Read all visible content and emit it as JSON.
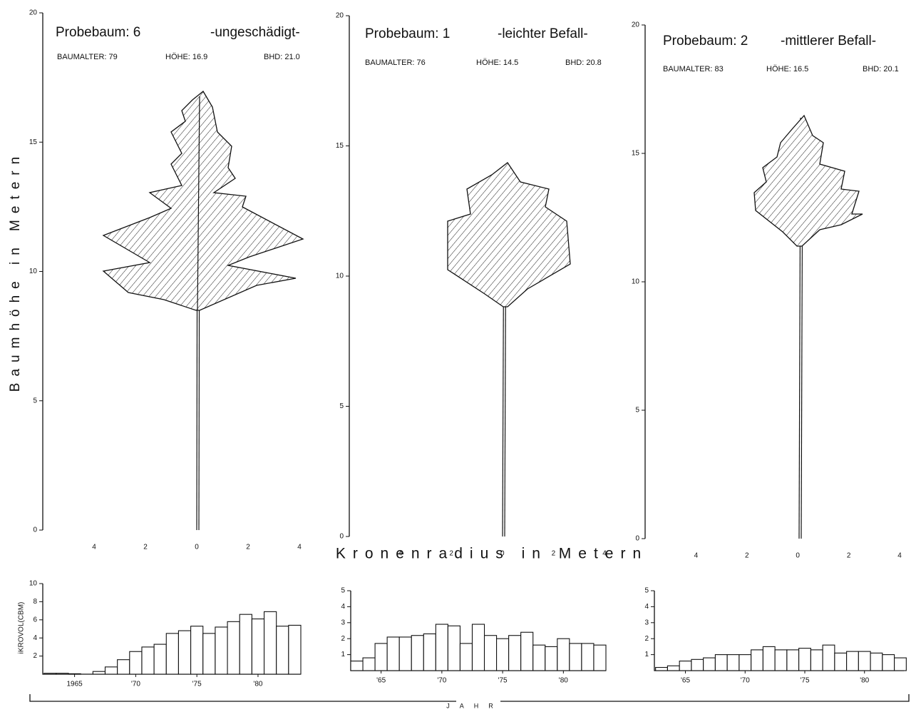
{
  "labels": {
    "y_label": "Baumhöhe in Metern",
    "x_label": "Kronenradius in Metern",
    "bar_y_label": "iKROVOL(CBM)",
    "bar_x_label": "JAHR"
  },
  "chart_data": [
    {
      "type": "profile",
      "title": "Probebaum: 6",
      "subtitle": "-ungeschädigt-",
      "age": "BAUMALTER: 79",
      "height": "HÖHE: 16.9",
      "dbh": "BHD: 21.0",
      "xlim": [
        -6,
        4
      ],
      "xticks": [
        {
          "value": -4,
          "label": "4"
        },
        {
          "value": -2,
          "label": "2"
        },
        0,
        2,
        4
      ],
      "ylim": [
        0,
        20
      ],
      "yticks": [
        0,
        5,
        10,
        15,
        20
      ]
    },
    {
      "type": "profile",
      "title": "Probebaum: 1",
      "subtitle": "-leichter Befall-",
      "age": "BAUMALTER: 76",
      "height": "HÖHE: 14.5",
      "dbh": "BHD: 20.8",
      "xlim": [
        -6,
        4
      ],
      "xticks": [
        {
          "value": -4,
          "label": "4"
        },
        {
          "value": -2,
          "label": "2"
        },
        0,
        2,
        4
      ],
      "ylim": [
        0,
        20
      ],
      "yticks": [
        0,
        5,
        10,
        15,
        20
      ]
    },
    {
      "type": "profile",
      "title": "Probebaum: 2",
      "subtitle": "-mittlerer Befall-",
      "age": "BAUMALTER: 83",
      "height": "HÖHE: 16.5",
      "dbh": "BHD: 20.1",
      "xlim": [
        -6,
        4
      ],
      "xticks": [
        {
          "value": -4,
          "label": "4"
        },
        {
          "value": -2,
          "label": "2"
        },
        0,
        2,
        4
      ],
      "ylim": [
        0,
        20
      ],
      "yticks": [
        0,
        5,
        10,
        15,
        20
      ]
    },
    {
      "type": "bar",
      "color": "#ffffff",
      "x": [
        1963,
        1964,
        1965,
        1966,
        1967,
        1968,
        1969,
        1970,
        1971,
        1972,
        1973,
        1974,
        1975,
        1976,
        1977,
        1978,
        1979,
        1980,
        1981,
        1982,
        1983
      ],
      "values": [
        0.1,
        0.1,
        0.05,
        0,
        0.3,
        0.8,
        1.6,
        2.5,
        3.0,
        3.3,
        4.5,
        4.8,
        5.3,
        4.5,
        5.2,
        5.8,
        6.6,
        6.1,
        6.9,
        5.3,
        5.4
      ],
      "xlim": [
        1962.4,
        1983.5
      ],
      "xticks": [
        {
          "value": 1965,
          "label": "1965"
        },
        {
          "value": 1970,
          "label": "'70"
        },
        {
          "value": 1975,
          "label": "'75"
        },
        {
          "value": 1980,
          "label": "'80"
        }
      ],
      "ylim": [
        0,
        10
      ],
      "yticks": [
        2,
        4,
        6,
        8,
        10
      ]
    },
    {
      "type": "bar",
      "color": "#ffffff",
      "x": [
        1963,
        1964,
        1965,
        1966,
        1967,
        1968,
        1969,
        1970,
        1971,
        1972,
        1973,
        1974,
        1975,
        1976,
        1977,
        1978,
        1979,
        1980,
        1981,
        1982,
        1983
      ],
      "values": [
        0.6,
        0.8,
        1.7,
        2.1,
        2.1,
        2.2,
        2.3,
        2.9,
        2.8,
        1.7,
        2.9,
        2.2,
        2.0,
        2.2,
        2.4,
        1.6,
        1.5,
        2.0,
        1.7,
        1.7,
        1.6
      ],
      "xlim": [
        1962.5,
        1983.5
      ],
      "xticks": [
        {
          "value": 1965,
          "label": "'65"
        },
        {
          "value": 1970,
          "label": "'70"
        },
        {
          "value": 1975,
          "label": "'75"
        },
        {
          "value": 1980,
          "label": "'80"
        }
      ],
      "ylim": [
        0,
        5
      ],
      "yticks": [
        1,
        2,
        3,
        4,
        5
      ]
    },
    {
      "type": "bar",
      "color": "#ffffff",
      "x": [
        1963,
        1964,
        1965,
        1966,
        1967,
        1968,
        1969,
        1970,
        1971,
        1972,
        1973,
        1974,
        1975,
        1976,
        1977,
        1978,
        1979,
        1980,
        1981,
        1982,
        1983
      ],
      "values": [
        0.2,
        0.3,
        0.6,
        0.7,
        0.8,
        1.0,
        1.0,
        1.0,
        1.3,
        1.5,
        1.3,
        1.3,
        1.4,
        1.3,
        1.6,
        1.1,
        1.2,
        1.2,
        1.1,
        1.0,
        0.8
      ],
      "xlim": [
        1962.4,
        1983.3
      ],
      "xticks": [
        {
          "value": 1965,
          "label": "'65"
        },
        {
          "value": 1970,
          "label": "'70"
        },
        {
          "value": 1975,
          "label": "'75"
        },
        {
          "value": 1980,
          "label": "'80"
        }
      ],
      "ylim": [
        0,
        5
      ],
      "yticks": [
        1,
        2,
        3,
        4,
        5
      ]
    }
  ]
}
